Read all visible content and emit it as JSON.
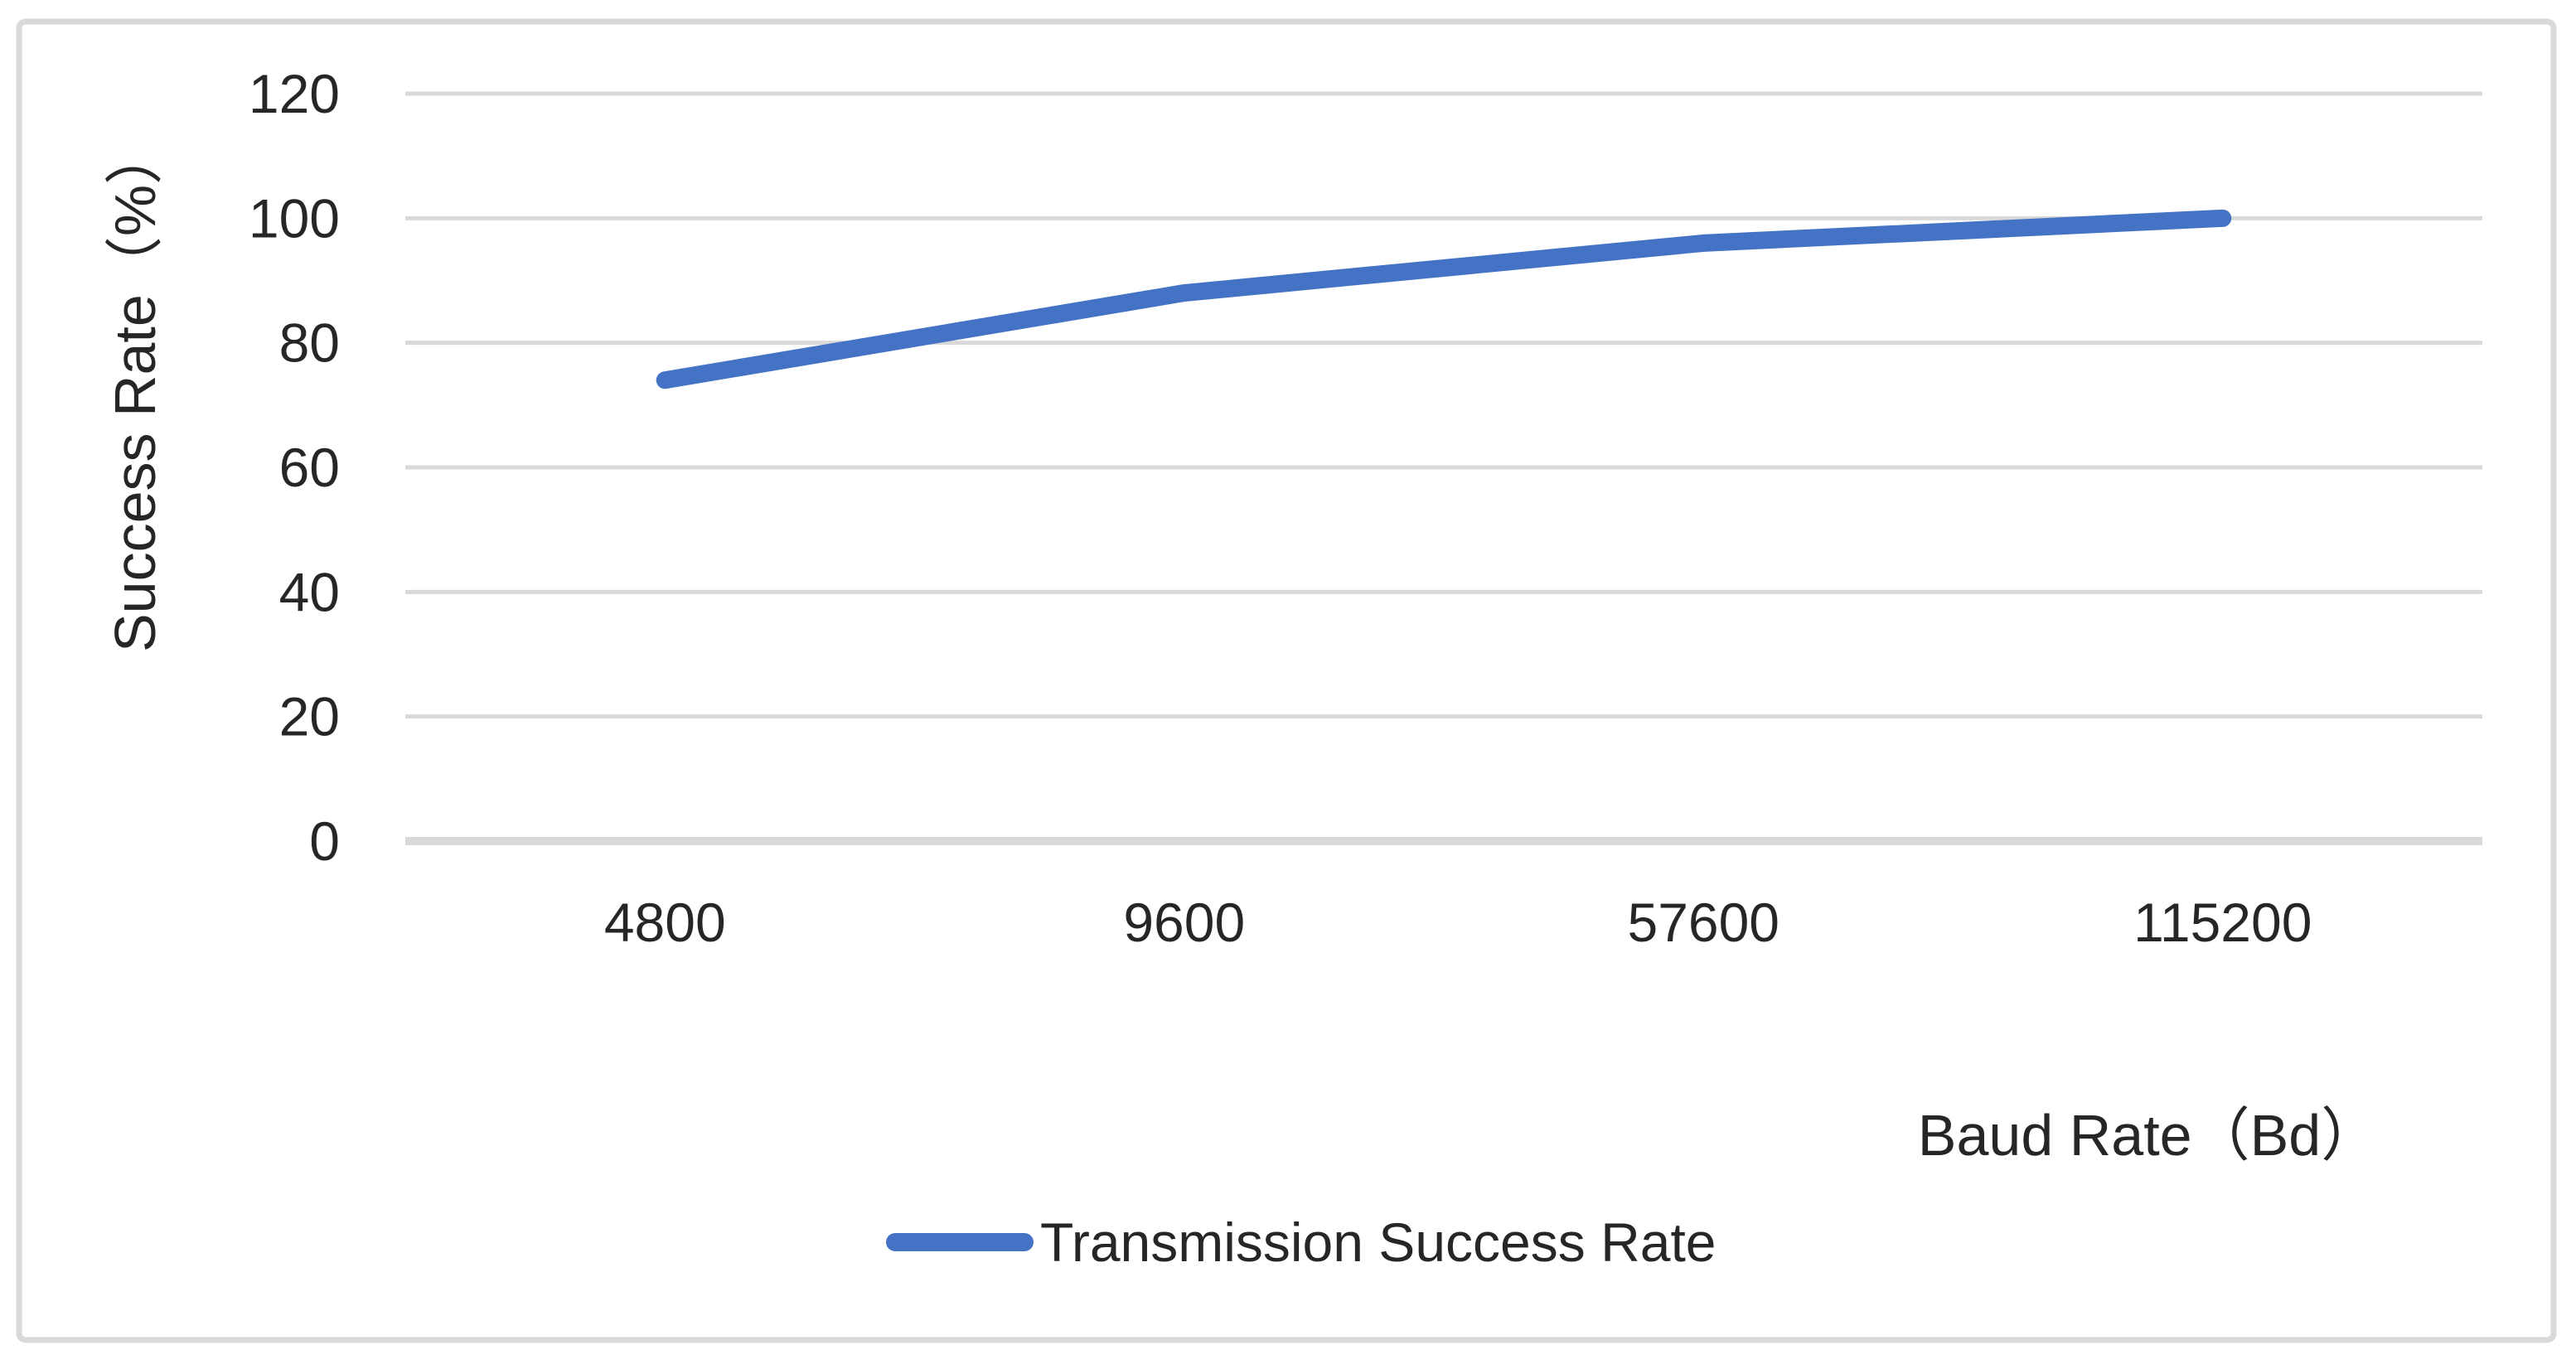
{
  "chart": {
    "ylabel": "Success Rate（%）",
    "xlabel": "Baud Rate（Bd）",
    "legend_label": "Transmission Success Rate"
  },
  "chart_data": {
    "type": "line",
    "categories": [
      "4800",
      "9600",
      "57600",
      "115200"
    ],
    "series": [
      {
        "name": "Transmission Success Rate",
        "values": [
          74,
          88,
          96,
          100
        ]
      }
    ],
    "title": "",
    "xlabel": "Baud Rate（Bd）",
    "ylabel": "Success Rate（%）",
    "ylim": [
      0,
      120
    ],
    "yticks": [
      0,
      20,
      40,
      60,
      80,
      100,
      120
    ],
    "grid": "horizontal",
    "legend_position": "bottom-center",
    "colors": {
      "line": "#4472C4",
      "gridline": "#D9D9D9",
      "axis_line": "#D9D9D9",
      "frame_border": "#D9D9D9",
      "text": "#262626"
    }
  }
}
